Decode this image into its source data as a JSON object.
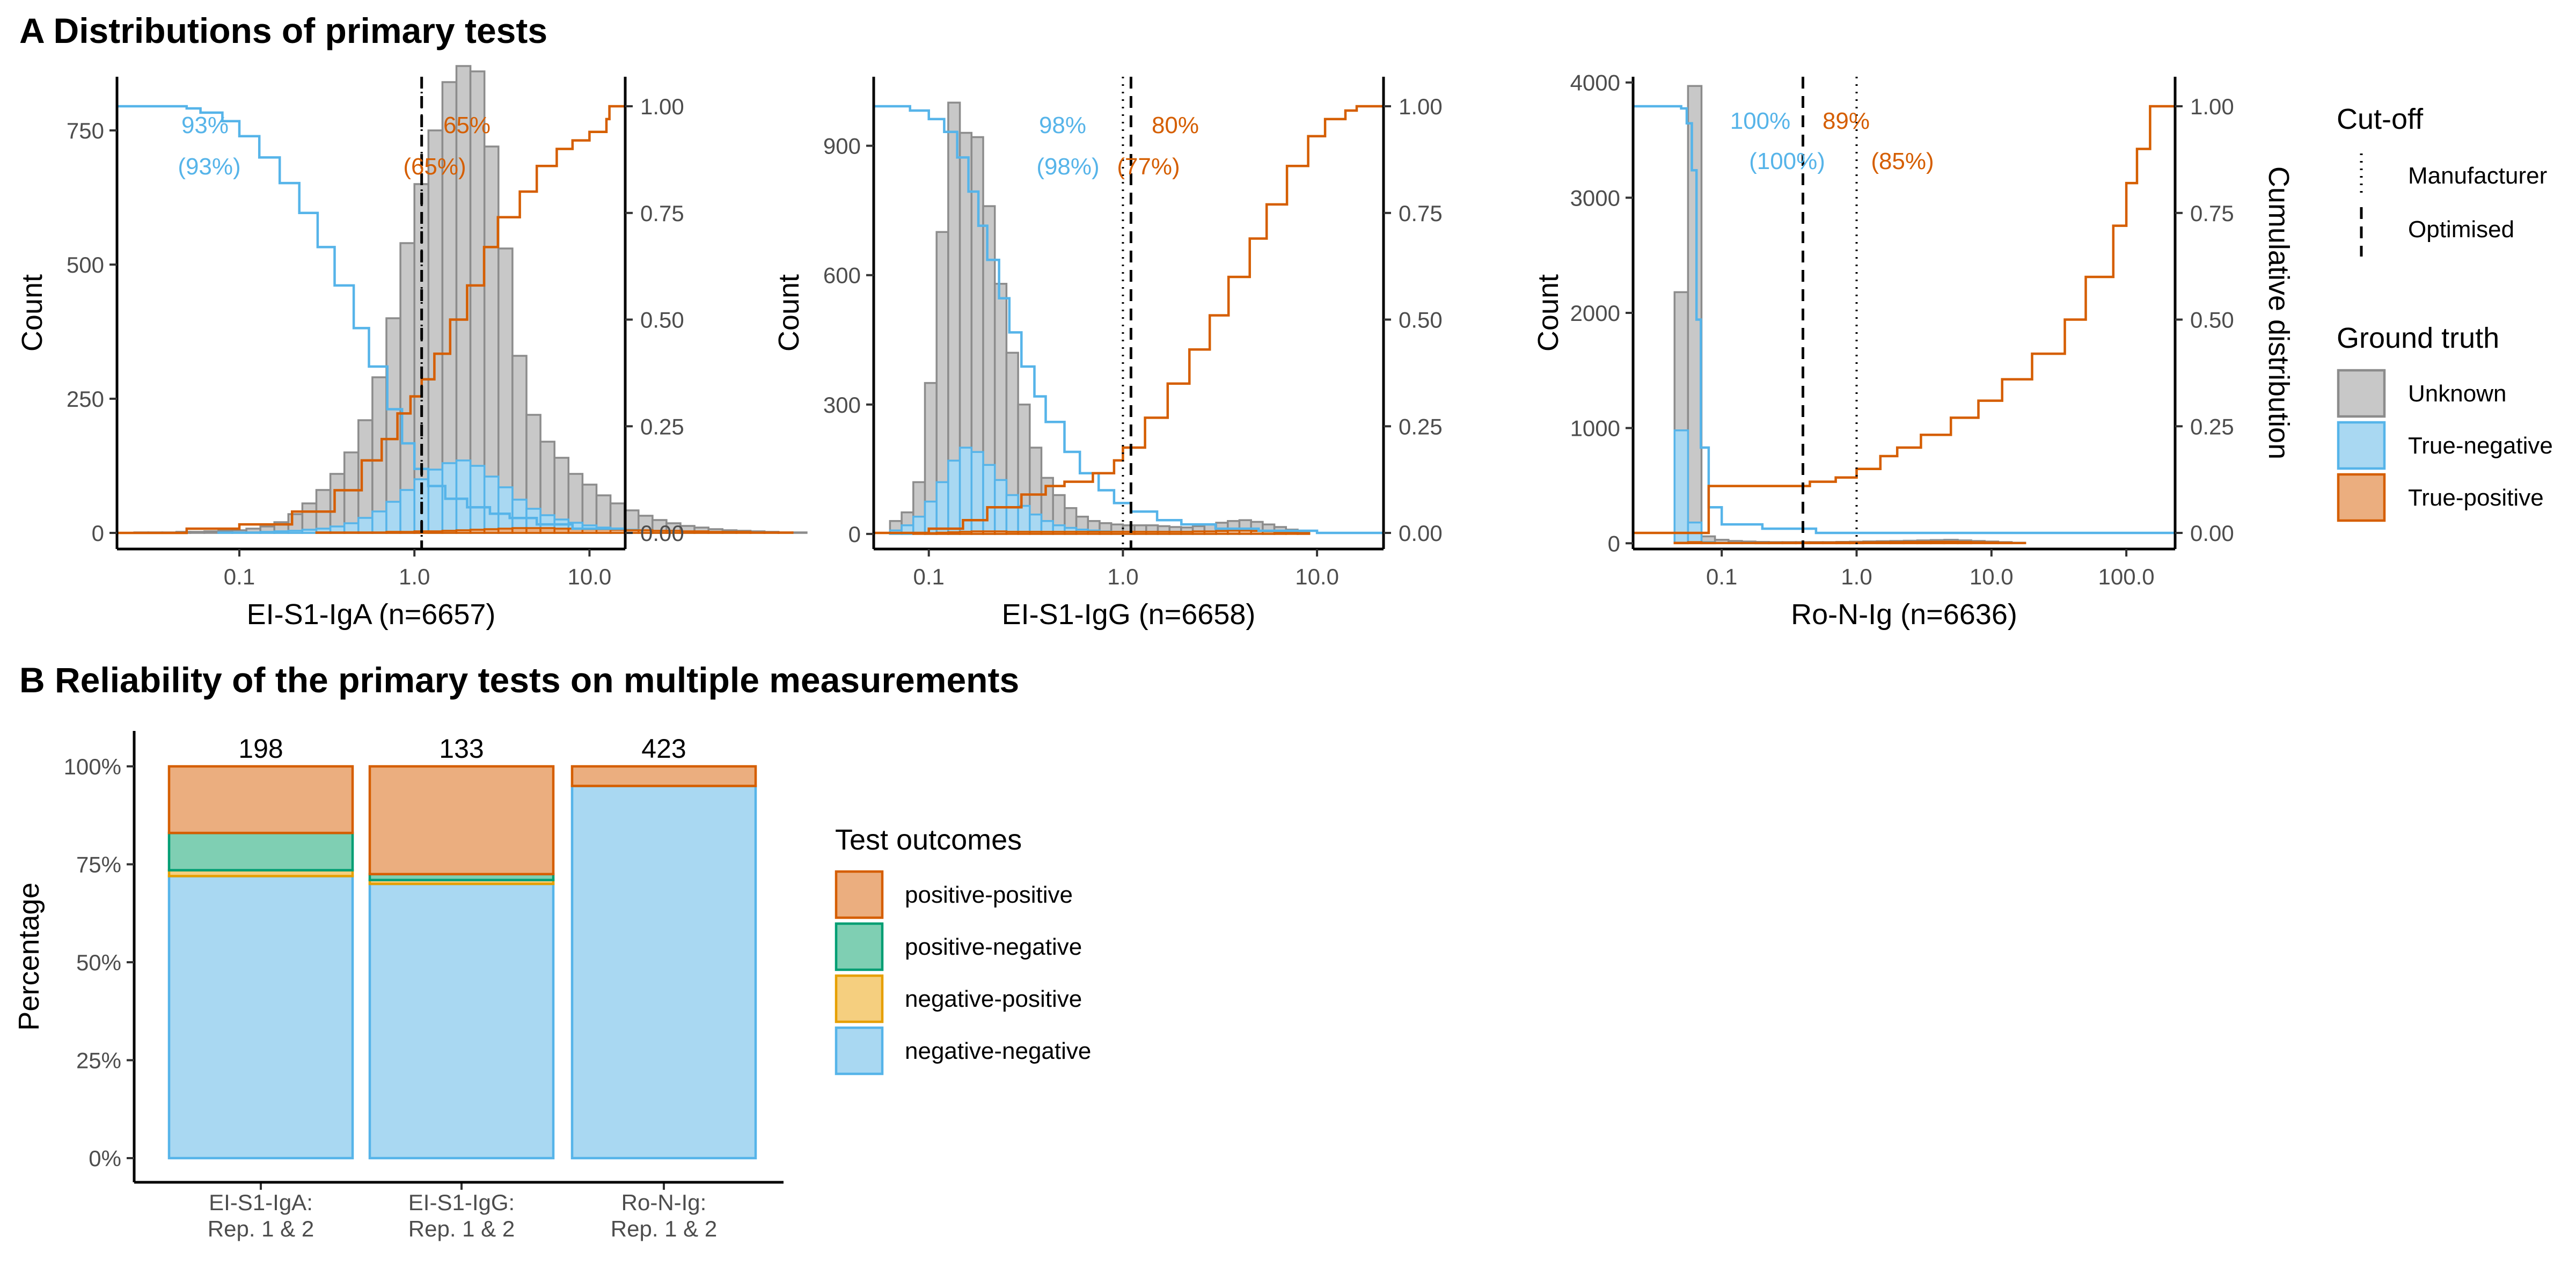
{
  "figure": {
    "panel_a_title": "A Distributions of primary tests",
    "panel_b_title": "B Reliability of the primary tests on multiple measurements"
  },
  "colors": {
    "unknown_fill": "#C8C8C8",
    "unknown_stroke": "#8C8C8C",
    "negative_fill": "#A9D8F2",
    "negative_stroke": "#56B4E9",
    "positive_fill": "#EBAE7F",
    "positive_stroke": "#D55E00",
    "green_fill": "#7FCFB3",
    "green_stroke": "#009E73",
    "yellow_fill": "#F5CF7F",
    "yellow_stroke": "#E69F00"
  },
  "legend_a": {
    "cutoff_title": "Cut-off",
    "cutoff_items": [
      "Manufacturer",
      "Optimised"
    ],
    "truth_title": "Ground truth",
    "truth_items": [
      "Unknown",
      "True-negative",
      "True-positive"
    ]
  },
  "legend_b": {
    "title": "Test outcomes",
    "items": [
      "positive-positive",
      "positive-negative",
      "negative-positive",
      "negative-negative"
    ]
  },
  "chart_data": [
    {
      "type": "bar",
      "subtype": "histogram-with-cumulative-distribution",
      "xlabel": "EI-S1-IgA (n=6657)",
      "ylabel": "Count",
      "y2label": "",
      "xscale": "log10",
      "xlim": [
        0.02,
        16
      ],
      "ylim": [
        -30,
        850
      ],
      "x_ticks": [
        "0.1",
        "1.0",
        "10.0"
      ],
      "y_ticks": [
        "0",
        "250",
        "500",
        "750"
      ],
      "y2_ticks": [
        "0.00",
        "0.25",
        "0.50",
        "0.75",
        "1.00"
      ],
      "cutoffs": {
        "manufacturer": 1.1,
        "optimised": 1.1
      },
      "annotations": {
        "negative": [
          "93%",
          "(93%)"
        ],
        "positive": [
          "65%",
          "(65%)"
        ]
      },
      "hist_bins": {
        "log10_start": -1.6,
        "log10_width": 0.08
      },
      "hist_unknown": [
        1,
        1,
        1,
        2,
        2,
        3,
        4,
        5,
        8,
        12,
        20,
        35,
        55,
        80,
        110,
        150,
        210,
        290,
        400,
        540,
        650,
        750,
        840,
        870,
        860,
        720,
        530,
        330,
        220,
        170,
        140,
        110,
        90,
        70,
        55,
        42,
        32,
        24,
        18,
        13,
        10,
        7,
        5,
        4,
        3,
        2,
        1,
        1
      ],
      "hist_negative": [
        0,
        0,
        0,
        0,
        0,
        0,
        1,
        1,
        1,
        2,
        3,
        4,
        6,
        8,
        12,
        18,
        28,
        40,
        58,
        80,
        100,
        118,
        130,
        135,
        125,
        105,
        85,
        62,
        45,
        33,
        25,
        19,
        14,
        10,
        8,
        6,
        4,
        3,
        2,
        2,
        1,
        1,
        1,
        0,
        0,
        0,
        0,
        0
      ],
      "hist_positive": [
        0,
        0,
        0,
        0,
        0,
        0,
        0,
        0,
        0,
        0,
        0,
        0,
        0,
        1,
        1,
        1,
        1,
        1,
        2,
        2,
        3,
        3,
        4,
        5,
        6,
        7,
        8,
        9,
        9,
        9,
        8,
        8,
        7,
        7,
        6,
        5,
        5,
        4,
        4,
        3,
        3,
        2,
        2,
        2,
        1,
        1,
        1,
        0
      ],
      "cdf_negative": {
        "x": [
          0.02,
          0.04,
          0.05,
          0.06,
          0.08,
          0.1,
          0.13,
          0.17,
          0.22,
          0.28,
          0.35,
          0.45,
          0.55,
          0.7,
          0.85,
          1.0,
          1.2,
          1.5,
          2.0,
          2.7,
          3.5,
          5.0,
          8.0,
          16
        ],
        "y": [
          1.0,
          1.0,
          0.995,
          0.985,
          0.965,
          0.93,
          0.88,
          0.82,
          0.75,
          0.67,
          0.58,
          0.48,
          0.39,
          0.29,
          0.21,
          0.15,
          0.11,
          0.08,
          0.06,
          0.045,
          0.035,
          0.02,
          0.01,
          0.0
        ]
      },
      "cdf_positive": {
        "x": [
          0.02,
          0.05,
          0.1,
          0.2,
          0.35,
          0.5,
          0.65,
          0.8,
          0.95,
          1.1,
          1.3,
          1.6,
          2.0,
          2.5,
          3.0,
          4.0,
          5.0,
          6.5,
          8.0,
          10.0,
          12.5,
          13.0,
          16
        ],
        "y": [
          0.0,
          0.01,
          0.02,
          0.05,
          0.1,
          0.17,
          0.22,
          0.28,
          0.32,
          0.36,
          0.42,
          0.5,
          0.58,
          0.67,
          0.74,
          0.8,
          0.86,
          0.9,
          0.92,
          0.94,
          0.97,
          1.0,
          1.0
        ]
      }
    },
    {
      "type": "bar",
      "subtype": "histogram-with-cumulative-distribution",
      "xlabel": "EI-S1-IgG (n=6658)",
      "ylabel": "Count",
      "y2label": "",
      "xscale": "log10",
      "xlim": [
        0.052,
        22
      ],
      "ylim": [
        -35,
        1060
      ],
      "x_ticks": [
        "0.1",
        "1.0",
        "10.0"
      ],
      "y_ticks": [
        "0",
        "300",
        "600",
        "900"
      ],
      "y2_ticks": [
        "0.00",
        "0.25",
        "0.50",
        "0.75",
        "1.00"
      ],
      "cutoffs": {
        "manufacturer": 1.0,
        "optimised": 1.1
      },
      "annotations": {
        "negative": [
          "98%",
          "(98%)"
        ],
        "positive": [
          "80%",
          "(77%)"
        ]
      },
      "hist_bins": {
        "log10_start": -1.2,
        "log10_width": 0.06
      },
      "hist_unknown": [
        30,
        50,
        120,
        350,
        700,
        1000,
        930,
        920,
        760,
        580,
        420,
        300,
        200,
        130,
        90,
        60,
        40,
        30,
        25,
        22,
        20,
        20,
        20,
        18,
        16,
        15,
        18,
        22,
        26,
        30,
        32,
        28,
        22,
        16,
        10,
        6
      ],
      "hist_negative": [
        8,
        20,
        40,
        75,
        120,
        170,
        200,
        190,
        160,
        125,
        90,
        65,
        45,
        30,
        20,
        14,
        10,
        8,
        6,
        5,
        4,
        4,
        3,
        3,
        2,
        2,
        2,
        2,
        2,
        2,
        1,
        1,
        1,
        0,
        0,
        0
      ],
      "hist_positive": [
        0,
        0,
        1,
        2,
        3,
        4,
        5,
        6,
        6,
        6,
        5,
        5,
        5,
        5,
        5,
        5,
        5,
        5,
        5,
        5,
        5,
        5,
        5,
        5,
        5,
        5,
        6,
        6,
        7,
        8,
        8,
        7,
        6,
        4,
        3,
        2
      ],
      "cdf_negative": {
        "x": [
          0.052,
          0.08,
          0.1,
          0.12,
          0.14,
          0.16,
          0.18,
          0.2,
          0.23,
          0.26,
          0.3,
          0.35,
          0.4,
          0.5,
          0.6,
          0.75,
          0.9,
          1.1,
          1.5,
          2.0,
          3.0,
          5.0,
          10,
          22
        ],
        "y": [
          1.0,
          0.99,
          0.97,
          0.94,
          0.88,
          0.8,
          0.72,
          0.64,
          0.55,
          0.47,
          0.39,
          0.32,
          0.26,
          0.19,
          0.14,
          0.1,
          0.07,
          0.05,
          0.03,
          0.02,
          0.01,
          0.005,
          0.0,
          0.0
        ]
      },
      "cdf_positive": {
        "x": [
          0.052,
          0.1,
          0.15,
          0.2,
          0.3,
          0.4,
          0.5,
          0.7,
          0.9,
          1.0,
          1.3,
          1.7,
          2.2,
          2.8,
          3.5,
          4.5,
          5.5,
          7.0,
          9.0,
          11.0,
          14.0,
          16.0,
          22
        ],
        "y": [
          0.0,
          0.01,
          0.03,
          0.06,
          0.09,
          0.11,
          0.12,
          0.14,
          0.17,
          0.2,
          0.27,
          0.35,
          0.43,
          0.51,
          0.6,
          0.69,
          0.77,
          0.86,
          0.93,
          0.97,
          0.99,
          1.0,
          1.0
        ]
      }
    },
    {
      "type": "bar",
      "subtype": "histogram-with-cumulative-distribution",
      "xlabel": "Ro-N-Ig (n=6636)",
      "ylabel": "Count",
      "y2label": "Cumulative distribution",
      "xscale": "log10",
      "xlim": [
        0.022,
        230
      ],
      "ylim": [
        -50,
        4050
      ],
      "x_ticks": [
        "0.1",
        "1.0",
        "10.0",
        "100.0"
      ],
      "y_ticks": [
        "0",
        "1000",
        "2000",
        "3000",
        "4000"
      ],
      "y2_ticks": [
        "0.00",
        "0.25",
        "0.50",
        "0.75",
        "1.00"
      ],
      "cutoffs": {
        "manufacturer": 1.0,
        "optimised": 0.4
      },
      "annotations": {
        "negative": [
          "100%",
          "(100%)"
        ],
        "positive": [
          "89%",
          "(85%)"
        ]
      },
      "hist_bins": {
        "log10_start": -1.35,
        "log10_width": 0.1
      },
      "hist_unknown": [
        2180,
        3970,
        60,
        30,
        20,
        15,
        12,
        10,
        10,
        10,
        10,
        10,
        12,
        14,
        16,
        18,
        20,
        22,
        25,
        28,
        30,
        25,
        20,
        15,
        10,
        5
      ],
      "hist_negative": [
        980,
        180,
        10,
        3,
        2,
        1,
        1,
        1,
        1,
        0,
        0,
        0,
        0,
        0,
        0,
        0,
        0,
        0,
        0,
        0,
        0,
        0,
        0,
        0,
        0,
        0
      ],
      "hist_positive": [
        5,
        10,
        5,
        3,
        3,
        3,
        4,
        5,
        6,
        6,
        7,
        7,
        8,
        8,
        9,
        10,
        11,
        12,
        13,
        14,
        14,
        12,
        10,
        8,
        5,
        3
      ],
      "cdf_negative": {
        "x": [
          0.022,
          0.045,
          0.05,
          0.055,
          0.06,
          0.065,
          0.07,
          0.08,
          0.1,
          0.2,
          0.5,
          230
        ],
        "y": [
          1.0,
          1.0,
          0.995,
          0.96,
          0.85,
          0.5,
          0.2,
          0.06,
          0.02,
          0.01,
          0.0,
          0.0
        ]
      },
      "cdf_positive": {
        "x": [
          0.022,
          0.045,
          0.06,
          0.08,
          0.1,
          0.2,
          0.38,
          0.45,
          0.55,
          0.7,
          1.0,
          1.5,
          2.0,
          3.0,
          5.0,
          8.0,
          12,
          20,
          35,
          50,
          80,
          100,
          120,
          150,
          230
        ],
        "y": [
          0.0,
          0.0,
          0.0,
          0.11,
          0.11,
          0.11,
          0.11,
          0.12,
          0.12,
          0.13,
          0.15,
          0.18,
          0.2,
          0.23,
          0.27,
          0.31,
          0.36,
          0.42,
          0.5,
          0.6,
          0.72,
          0.82,
          0.9,
          1.0,
          1.0
        ]
      }
    },
    {
      "type": "bar",
      "subtype": "stacked-percentage",
      "ylabel": "Percentage",
      "xlabel": "",
      "ylim": [
        0,
        1
      ],
      "y_ticks": [
        "0%",
        "25%",
        "50%",
        "75%",
        "100%"
      ],
      "categories": [
        [
          "EI-S1-IgA:",
          "Rep. 1 & 2"
        ],
        [
          "EI-S1-IgG:",
          "Rep. 1 & 2"
        ],
        [
          "Ro-N-Ig:",
          "Rep. 1 & 2"
        ]
      ],
      "totals": [
        "198",
        "133",
        "423"
      ],
      "series": [
        {
          "name": "negative-negative",
          "values": [
            0.72,
            0.7,
            0.95
          ]
        },
        {
          "name": "negative-positive",
          "values": [
            0.015,
            0.01,
            0.0
          ]
        },
        {
          "name": "positive-negative",
          "values": [
            0.095,
            0.015,
            0.0
          ]
        },
        {
          "name": "positive-positive",
          "values": [
            0.17,
            0.275,
            0.05
          ]
        }
      ]
    }
  ]
}
